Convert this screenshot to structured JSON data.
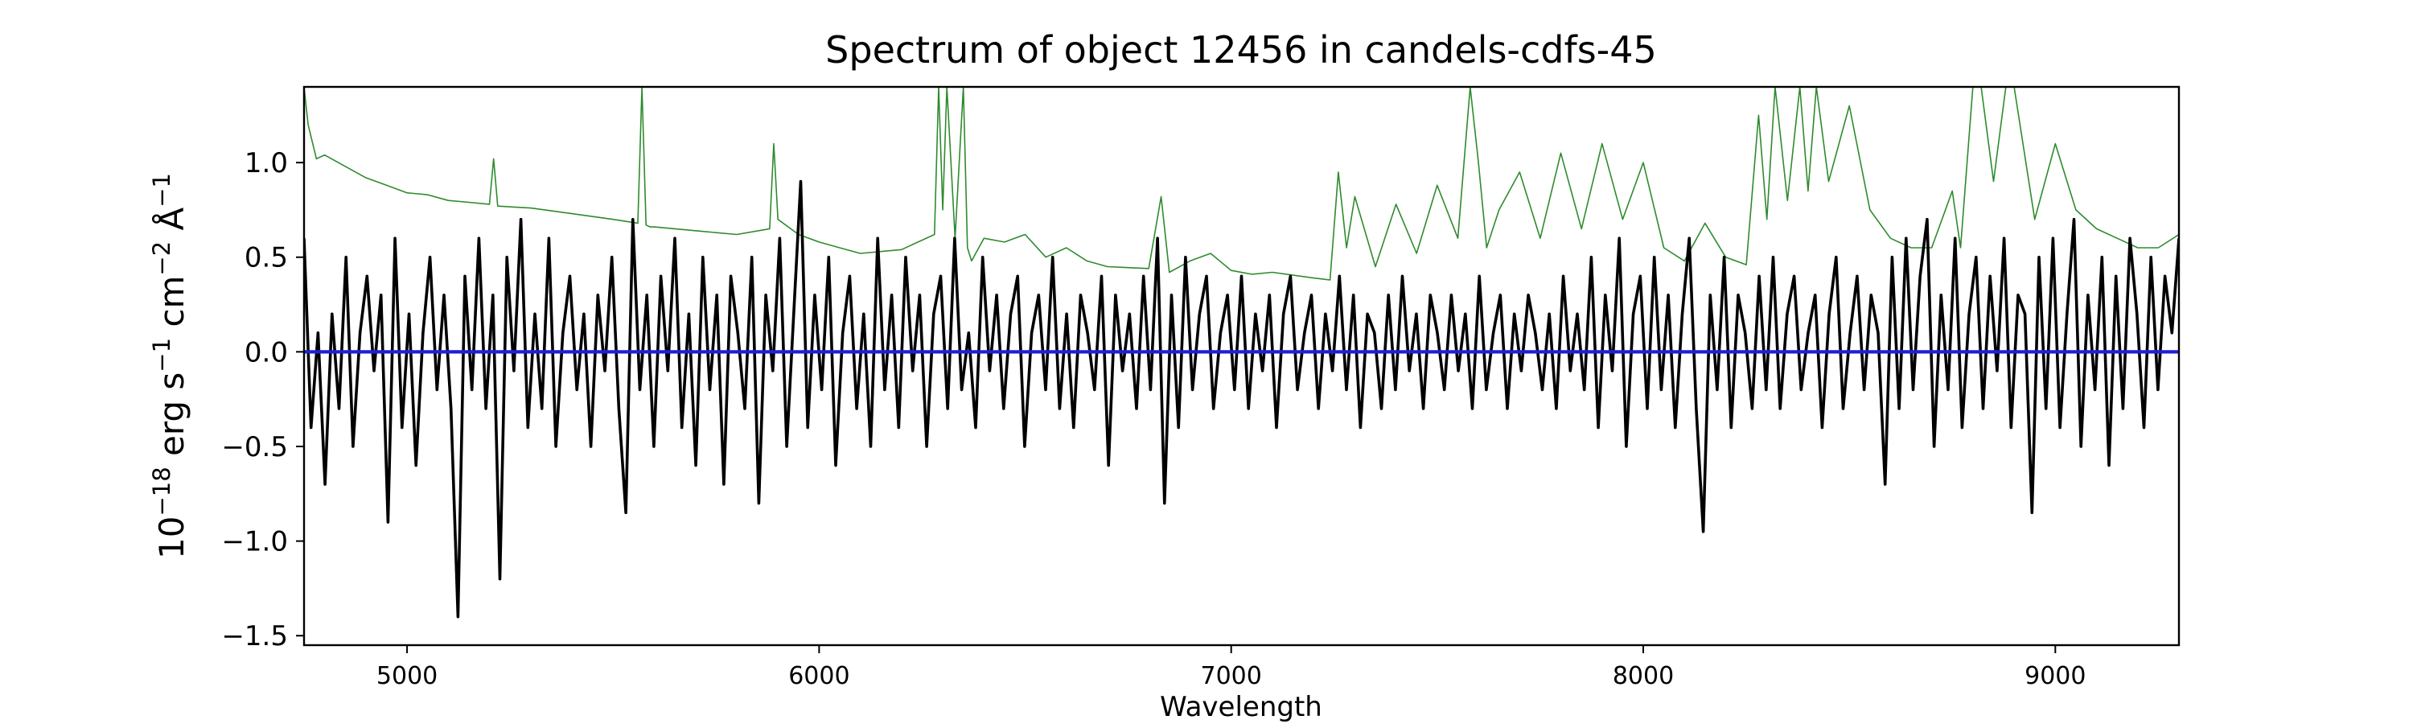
{
  "chart_data": {
    "type": "line",
    "title": "Spectrum of object 12456 in candels-cdfs-45",
    "xlabel": "Wavelength",
    "ylabel_parts": {
      "base": "10",
      "exp": "−18",
      "unit1": " erg s",
      "exp1": "−1",
      "unit2": " cm",
      "exp2": "−2",
      "unit3": " Å",
      "exp3": "−1"
    },
    "xlim": [
      4750,
      9300
    ],
    "ylim": [
      -1.55,
      1.4
    ],
    "x_ticks": [
      5000,
      6000,
      7000,
      8000,
      9000
    ],
    "x_tick_labels": [
      "5000",
      "6000",
      "7000",
      "8000",
      "9000"
    ],
    "y_ticks": [
      -1.5,
      -1.0,
      -0.5,
      0.0,
      0.5,
      1.0
    ],
    "y_tick_labels": [
      "−1.5",
      "−1.0",
      "−0.5",
      "0.0",
      "0.5",
      "1.0"
    ],
    "grid": false,
    "series": [
      {
        "role": "noise",
        "color": "#2e8b2e",
        "x": [
          4750,
          4760,
          4780,
          4800,
          4850,
          4900,
          4950,
          5000,
          5050,
          5100,
          5150,
          5200,
          5210,
          5220,
          5300,
          5400,
          5500,
          5560,
          5570,
          5580,
          5590,
          5600,
          5700,
          5800,
          5880,
          5890,
          5900,
          5950,
          6000,
          6050,
          6100,
          6200,
          6280,
          6290,
          6300,
          6310,
          6330,
          6350,
          6360,
          6370,
          6400,
          6450,
          6500,
          6550,
          6600,
          6650,
          6700,
          6800,
          6830,
          6850,
          6900,
          6950,
          7000,
          7050,
          7100,
          7200,
          7240,
          7260,
          7280,
          7300,
          7350,
          7400,
          7450,
          7500,
          7550,
          7580,
          7600,
          7620,
          7650,
          7700,
          7750,
          7800,
          7850,
          7900,
          7950,
          8000,
          8050,
          8100,
          8150,
          8200,
          8250,
          8280,
          8300,
          8320,
          8350,
          8380,
          8400,
          8420,
          8450,
          8500,
          8550,
          8600,
          8650,
          8700,
          8750,
          8770,
          8800,
          8820,
          8850,
          8880,
          8900,
          8950,
          9000,
          9050,
          9100,
          9150,
          9200,
          9250,
          9300
        ],
        "y": [
          1.4,
          1.2,
          1.02,
          1.04,
          0.98,
          0.92,
          0.88,
          0.84,
          0.83,
          0.8,
          0.79,
          0.78,
          1.02,
          0.77,
          0.76,
          0.73,
          0.7,
          0.68,
          1.4,
          0.67,
          0.66,
          0.66,
          0.64,
          0.62,
          0.65,
          1.1,
          0.7,
          0.62,
          0.58,
          0.55,
          0.52,
          0.54,
          0.62,
          1.4,
          0.75,
          1.4,
          0.6,
          1.4,
          0.55,
          0.48,
          0.6,
          0.58,
          0.62,
          0.5,
          0.55,
          0.48,
          0.45,
          0.44,
          0.82,
          0.42,
          0.48,
          0.52,
          0.43,
          0.41,
          0.42,
          0.39,
          0.38,
          0.95,
          0.55,
          0.82,
          0.45,
          0.78,
          0.52,
          0.88,
          0.6,
          1.4,
          1.0,
          0.55,
          0.75,
          0.95,
          0.6,
          1.05,
          0.65,
          1.1,
          0.7,
          1.0,
          0.55,
          0.48,
          0.68,
          0.5,
          0.46,
          1.25,
          0.7,
          1.4,
          0.8,
          1.4,
          0.85,
          1.4,
          0.9,
          1.3,
          0.75,
          0.6,
          0.55,
          0.55,
          0.85,
          0.55,
          1.4,
          1.4,
          0.9,
          1.4,
          1.4,
          0.7,
          1.1,
          0.75,
          0.65,
          0.6,
          0.55,
          0.55,
          0.62
        ]
      },
      {
        "role": "flux",
        "color": "#000000",
        "x_start": 4750,
        "x_end": 9300,
        "y": [
          0.6,
          -0.4,
          0.1,
          -0.7,
          0.2,
          -0.3,
          0.5,
          -0.5,
          0.1,
          0.4,
          -0.1,
          0.3,
          -0.9,
          0.6,
          -0.4,
          0.2,
          -0.6,
          0.1,
          0.5,
          -0.2,
          0.3,
          -0.3,
          -1.4,
          0.4,
          -0.2,
          0.6,
          -0.3,
          0.3,
          -1.2,
          0.5,
          -0.1,
          0.7,
          -0.4,
          0.2,
          -0.3,
          0.6,
          -0.5,
          0.1,
          0.4,
          -0.2,
          0.2,
          -0.5,
          0.3,
          -0.1,
          0.5,
          -0.3,
          -0.85,
          0.7,
          -0.2,
          0.3,
          -0.5,
          0.4,
          -0.1,
          0.6,
          -0.4,
          0.2,
          -0.6,
          0.5,
          -0.2,
          0.3,
          -0.7,
          0.4,
          0.1,
          -0.3,
          0.5,
          -0.8,
          0.3,
          -0.1,
          0.6,
          -0.5,
          0.2,
          0.9,
          -0.4,
          0.3,
          -0.2,
          0.5,
          -0.6,
          0.1,
          0.4,
          -0.3,
          0.2,
          -0.5,
          0.6,
          -0.2,
          0.3,
          -0.4,
          0.5,
          -0.1,
          0.3,
          -0.5,
          0.2,
          0.4,
          -0.3,
          0.6,
          -0.2,
          0.1,
          -0.4,
          0.5,
          -0.1,
          0.3,
          -0.3,
          0.2,
          0.4,
          -0.5,
          0.1,
          0.3,
          -0.2,
          0.5,
          -0.3,
          0.2,
          -0.4,
          0.3,
          0.1,
          -0.2,
          0.4,
          -0.6,
          0.3,
          -0.1,
          0.2,
          -0.3,
          0.4,
          -0.2,
          0.6,
          -0.8,
          0.3,
          -0.4,
          0.5,
          -0.2,
          0.2,
          0.4,
          -0.3,
          0.1,
          0.3,
          -0.2,
          0.4,
          -0.3,
          0.2,
          -0.1,
          0.3,
          -0.4,
          0.2,
          0.4,
          -0.2,
          0.1,
          0.3,
          -0.3,
          0.2,
          -0.1,
          0.4,
          -0.2,
          0.3,
          -0.4,
          0.2,
          0.1,
          -0.3,
          0.3,
          -0.2,
          0.4,
          -0.1,
          0.2,
          -0.3,
          0.3,
          0.1,
          -0.2,
          0.3,
          -0.1,
          0.2,
          -0.3,
          0.4,
          -0.2,
          0.1,
          0.3,
          -0.3,
          0.2,
          -0.1,
          0.3,
          0.1,
          -0.2,
          0.2,
          -0.3,
          0.4,
          -0.1,
          0.2,
          -0.2,
          0.5,
          -0.4,
          0.3,
          -0.1,
          0.6,
          -0.5,
          0.2,
          0.4,
          -0.3,
          0.5,
          -0.2,
          0.3,
          -0.4,
          0.2,
          0.6,
          -0.3,
          -0.95,
          0.3,
          -0.2,
          0.5,
          -0.4,
          0.3,
          0.1,
          -0.3,
          0.4,
          -0.2,
          0.5,
          -0.3,
          0.2,
          0.4,
          -0.2,
          0.1,
          0.3,
          -0.4,
          0.2,
          0.5,
          -0.3,
          0.1,
          0.4,
          -0.2,
          0.3,
          0.1,
          -0.7,
          0.5,
          -0.3,
          0.6,
          -0.2,
          0.4,
          0.7,
          -0.5,
          0.3,
          -0.2,
          0.6,
          -0.4,
          0.2,
          0.5,
          -0.3,
          0.4,
          -0.1,
          0.6,
          -0.4,
          0.3,
          0.2,
          -0.85,
          0.5,
          -0.3,
          0.6,
          -0.4,
          0.2,
          0.7,
          -0.5,
          0.3,
          -0.2,
          0.5,
          -0.6,
          0.4,
          -0.3,
          0.6,
          0.2,
          -0.4,
          0.5,
          -0.2,
          0.4,
          0.1,
          0.6
        ]
      },
      {
        "role": "continuum",
        "color": "#1f1fd6",
        "x": [
          4750,
          9300
        ],
        "y": [
          0.0,
          0.0
        ]
      }
    ]
  }
}
